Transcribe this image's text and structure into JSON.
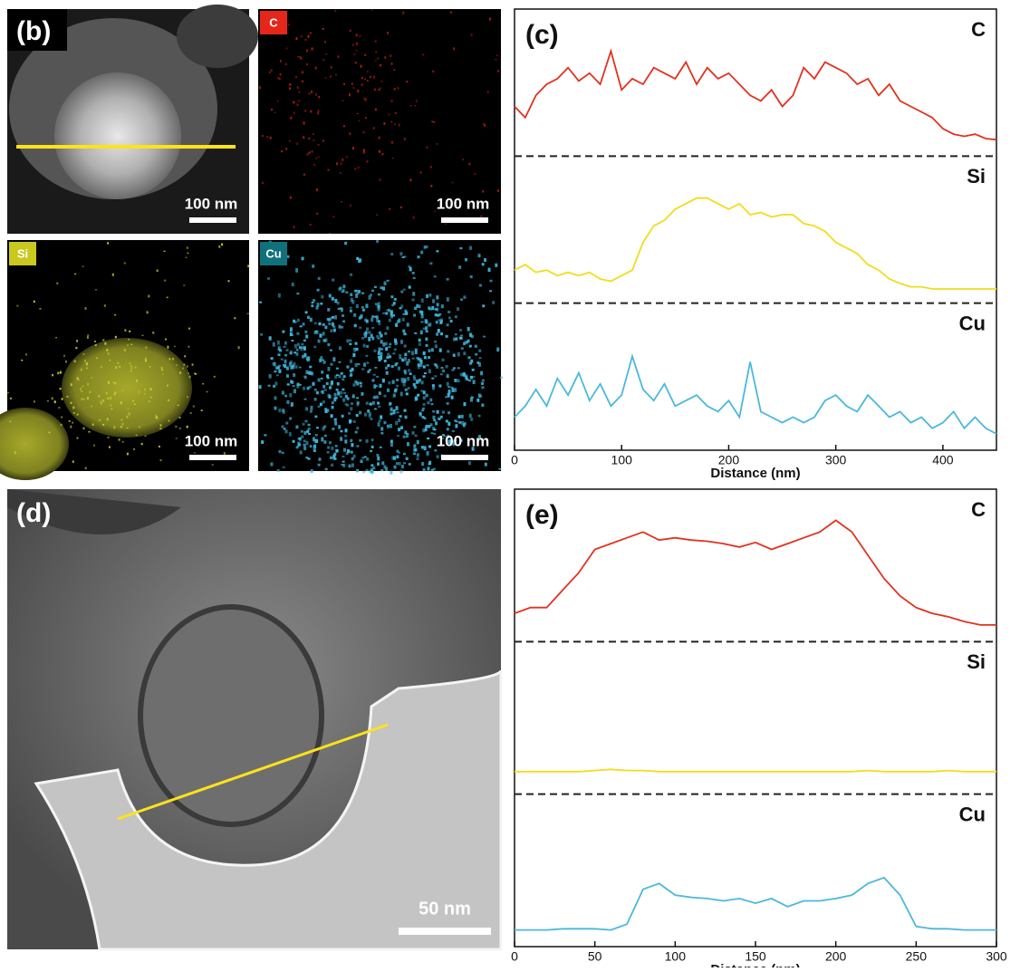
{
  "panel_b": {
    "label": "(b)",
    "tiles": [
      {
        "scale_bar": "100 nm"
      },
      {
        "element": "C",
        "color": "#e5261b",
        "scale_bar": "100 nm"
      },
      {
        "element": "Si",
        "color": "#c8c81e",
        "scale_bar": "100 nm"
      },
      {
        "element": "Cu",
        "color": "#10717c",
        "scale_bar": "100 nm"
      }
    ]
  },
  "panel_d": {
    "label": "(d)",
    "scale_bar": "50 nm"
  },
  "chart_data": [
    {
      "type": "line",
      "label": "(c)",
      "x_label": "Distance (nm)",
      "xlim": [
        0,
        450
      ],
      "xticks": [
        0,
        100,
        200,
        300,
        400
      ],
      "ylim": [
        0,
        100
      ],
      "x": [
        0,
        10,
        20,
        30,
        40,
        50,
        60,
        70,
        80,
        90,
        100,
        110,
        120,
        130,
        140,
        150,
        160,
        170,
        180,
        190,
        200,
        210,
        220,
        230,
        240,
        250,
        260,
        270,
        280,
        290,
        300,
        310,
        320,
        330,
        340,
        350,
        360,
        370,
        380,
        390,
        400,
        410,
        420,
        430,
        440,
        450
      ],
      "series": [
        {
          "name": "C",
          "color": "#e2321f",
          "values": [
            35,
            25,
            45,
            55,
            60,
            70,
            58,
            65,
            55,
            85,
            50,
            60,
            55,
            70,
            65,
            60,
            75,
            55,
            70,
            60,
            65,
            55,
            45,
            40,
            50,
            35,
            45,
            70,
            60,
            75,
            70,
            65,
            55,
            60,
            45,
            55,
            40,
            35,
            30,
            25,
            15,
            10,
            8,
            10,
            6,
            5
          ]
        },
        {
          "name": "Si",
          "color": "#f2dc1c",
          "values": [
            20,
            25,
            18,
            20,
            15,
            18,
            15,
            18,
            12,
            10,
            15,
            20,
            45,
            60,
            65,
            75,
            80,
            85,
            85,
            80,
            75,
            80,
            70,
            72,
            68,
            70,
            70,
            62,
            60,
            55,
            45,
            40,
            35,
            25,
            20,
            12,
            8,
            5,
            5,
            3,
            3,
            3,
            3,
            3,
            3,
            3
          ]
        },
        {
          "name": "Cu",
          "color": "#4bb8dc",
          "values": [
            20,
            30,
            45,
            30,
            55,
            40,
            60,
            35,
            50,
            30,
            40,
            75,
            45,
            35,
            50,
            30,
            35,
            40,
            30,
            25,
            35,
            20,
            70,
            25,
            20,
            15,
            20,
            15,
            20,
            35,
            40,
            30,
            25,
            40,
            30,
            20,
            25,
            15,
            20,
            10,
            15,
            25,
            10,
            20,
            10,
            5
          ]
        }
      ]
    },
    {
      "type": "line",
      "label": "(e)",
      "x_label": "Distance (nm)",
      "xlim": [
        0,
        300
      ],
      "xticks": [
        0,
        50,
        100,
        150,
        200,
        250,
        300
      ],
      "ylim": [
        0,
        100
      ],
      "x": [
        0,
        10,
        20,
        30,
        40,
        50,
        60,
        70,
        80,
        90,
        100,
        110,
        120,
        130,
        140,
        150,
        160,
        170,
        180,
        190,
        200,
        210,
        220,
        230,
        240,
        250,
        260,
        270,
        280,
        290,
        300
      ],
      "series": [
        {
          "name": "C",
          "color": "#e2321f",
          "values": [
            15,
            20,
            20,
            35,
            50,
            70,
            75,
            80,
            85,
            78,
            80,
            78,
            77,
            75,
            72,
            76,
            70,
            75,
            80,
            85,
            95,
            85,
            65,
            45,
            30,
            20,
            15,
            12,
            8,
            5,
            5
          ]
        },
        {
          "name": "Si",
          "color": "#f2dc1c",
          "values": [
            10,
            10,
            10,
            10,
            10,
            11,
            12,
            11,
            11,
            10,
            10,
            10,
            10,
            10,
            10,
            10,
            10,
            10,
            10,
            10,
            10,
            10,
            11,
            10,
            10,
            10,
            10,
            11,
            10,
            10,
            10
          ]
        },
        {
          "name": "Cu",
          "color": "#4bb8dc",
          "values": [
            5,
            5,
            5,
            6,
            6,
            6,
            5,
            10,
            40,
            45,
            35,
            33,
            32,
            30,
            32,
            28,
            32,
            25,
            30,
            30,
            32,
            35,
            45,
            50,
            35,
            8,
            6,
            6,
            5,
            5,
            5
          ]
        }
      ]
    }
  ]
}
